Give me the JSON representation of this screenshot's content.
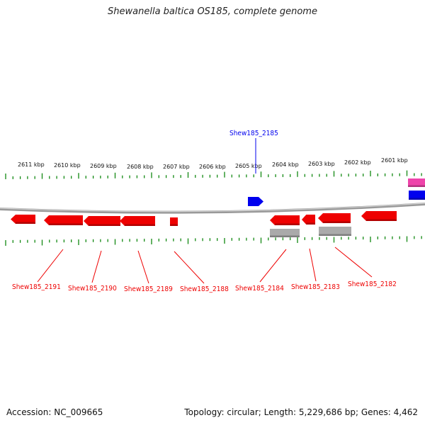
{
  "title": "Shewanella baltica OS185, complete genome",
  "footer": {
    "accession": "Accession: NC_009665",
    "stats": "Topology: circular; Length: 5,229,686 bp; Genes: 4,462"
  },
  "colors": {
    "forward_gene": "#0000ee",
    "reverse_gene": "#ee0000",
    "pseudo_gene": "#aaaaaa",
    "rna_gene": "#ee44aa",
    "tick": "#118811",
    "backbone": "#888888"
  },
  "kbp_labels": [
    "2611 kbp",
    "2610 kbp",
    "2609 kbp",
    "2608 kbp",
    "2607 kbp",
    "2606 kbp",
    "2605 kbp",
    "2604 kbp",
    "2603 kbp",
    "2602 kbp",
    "2601 kbp"
  ],
  "forward_labels": [
    {
      "name": "Shew185_2185"
    }
  ],
  "reverse_labels": [
    {
      "name": "Shew185_2191"
    },
    {
      "name": "Shew185_2190"
    },
    {
      "name": "Shew185_2189"
    },
    {
      "name": "Shew185_2188"
    },
    {
      "name": "Shew185_2184"
    },
    {
      "name": "Shew185_2183"
    },
    {
      "name": "Shew185_2182"
    }
  ]
}
